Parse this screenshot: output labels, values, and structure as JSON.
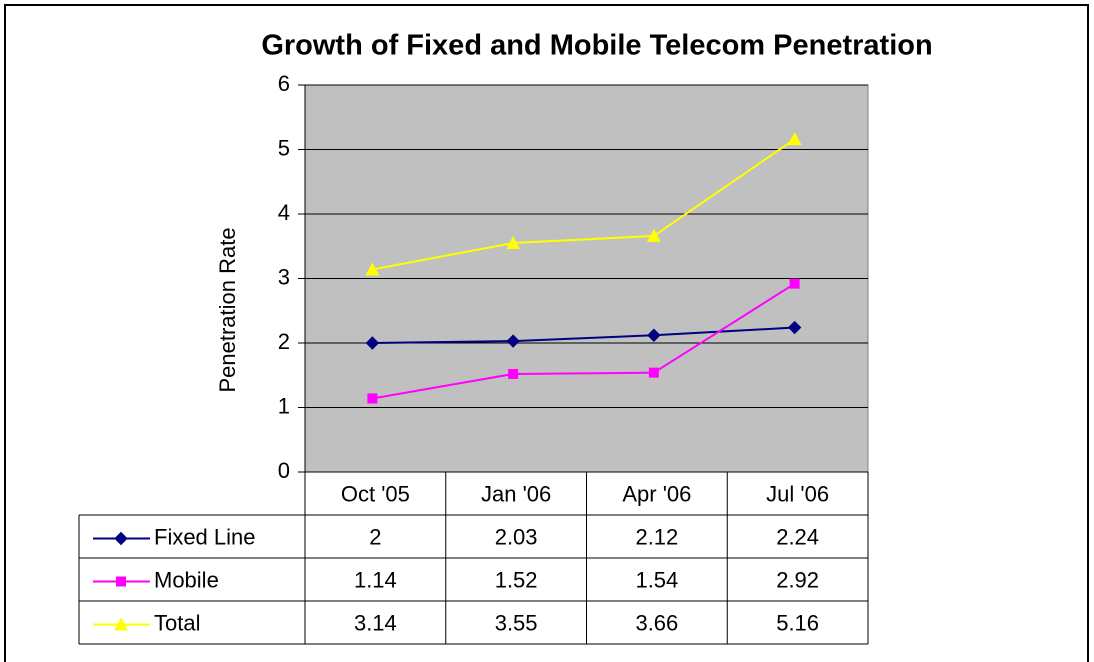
{
  "chart_data": {
    "type": "line",
    "title": "Growth of Fixed and Mobile Telecom Penetration",
    "y_label": "Penetration Rate",
    "categories": [
      "Oct '05",
      "Jan '06",
      "Apr '06",
      "Jul '06"
    ],
    "series": [
      {
        "name": "Fixed Line",
        "color": "#000080",
        "marker": "diamond",
        "values": [
          2,
          2.03,
          2.12,
          2.24
        ]
      },
      {
        "name": "Mobile",
        "color": "#ff00ff",
        "marker": "square",
        "values": [
          1.14,
          1.52,
          1.54,
          2.92
        ]
      },
      {
        "name": "Total",
        "color": "#ffff00",
        "marker": "triangle",
        "values": [
          3.14,
          3.55,
          3.66,
          5.16
        ]
      }
    ],
    "ylim": [
      0,
      6
    ],
    "yticks": [
      0,
      1,
      2,
      3,
      4,
      5,
      6
    ],
    "grid": true,
    "plot_background": "#c0c0c0",
    "data_table": true
  }
}
